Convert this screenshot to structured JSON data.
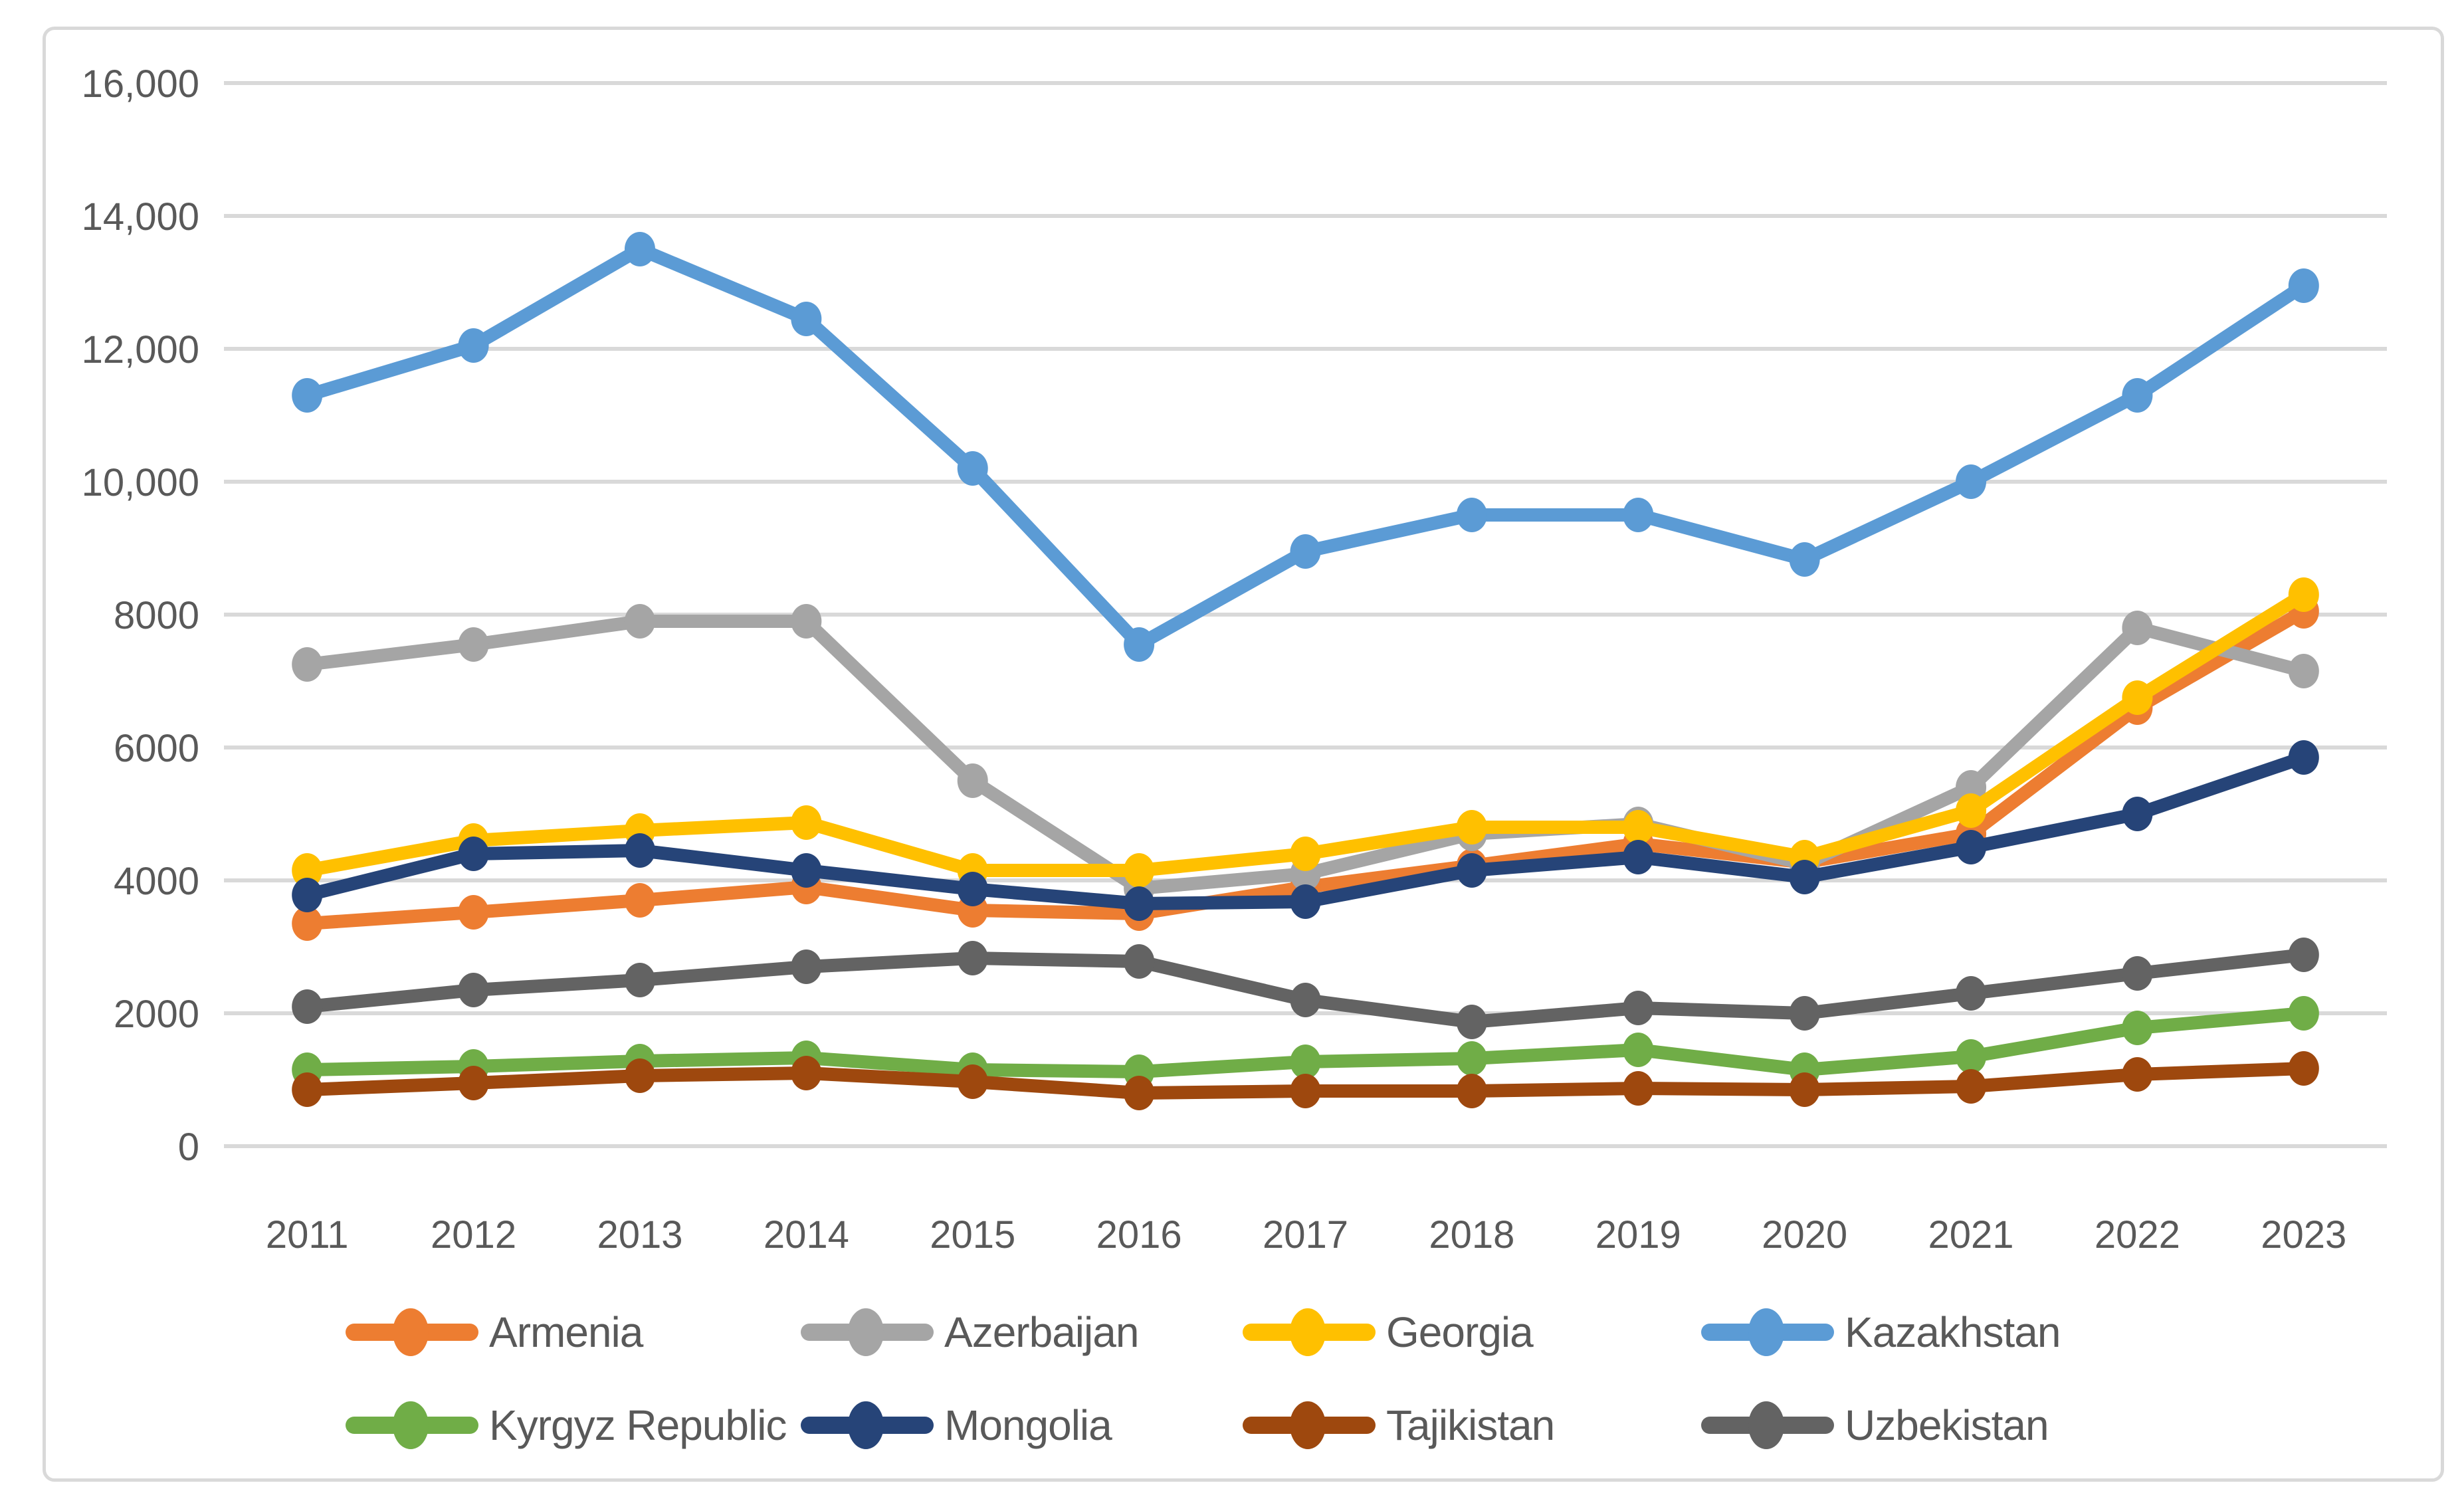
{
  "figure": {
    "background": "#FFFFFF",
    "frame_border_color": "#D9D9D9",
    "grid_color": "#D9D9D9",
    "axis_text_color": "#595959",
    "legend_text_color": "#595959"
  },
  "chart_data": {
    "type": "line",
    "title": "",
    "xlabel": "",
    "ylabel": "",
    "x": [
      "2011",
      "2012",
      "2013",
      "2014",
      "2015",
      "2016",
      "2017",
      "2018",
      "2019",
      "2020",
      "2021",
      "2022",
      "2023"
    ],
    "ylim": [
      0,
      16000
    ],
    "y_tick_interval": 2000,
    "y_tick_labels": [
      "0",
      "2000",
      "4000",
      "6000",
      "8000",
      "10,000",
      "12,000",
      "14,000",
      "16,000"
    ],
    "grid": "horizontal",
    "legend_position": "bottom",
    "marker": "circle",
    "series": [
      {
        "name": "Armenia",
        "color": "#ED7D31",
        "values": [
          3350,
          3520,
          3700,
          3900,
          3550,
          3500,
          3900,
          4220,
          4550,
          4270,
          4700,
          6600,
          8050
        ]
      },
      {
        "name": "Azerbaijan",
        "color": "#A5A5A5",
        "values": [
          7250,
          7550,
          7900,
          7900,
          5500,
          3880,
          4100,
          4700,
          4850,
          4250,
          5400,
          7800,
          7150
        ]
      },
      {
        "name": "Georgia",
        "color": "#FFC000",
        "values": [
          4150,
          4600,
          4750,
          4870,
          4150,
          4150,
          4400,
          4800,
          4800,
          4350,
          5050,
          6750,
          8300
        ]
      },
      {
        "name": "Kazakhstan",
        "color": "#5B9BD5",
        "values": [
          11300,
          12050,
          13500,
          12450,
          10200,
          7550,
          8950,
          9500,
          9500,
          8830,
          10000,
          11300,
          12950
        ]
      },
      {
        "name": "Kyrgyz Republic",
        "color": "#70AD47",
        "values": [
          1150,
          1200,
          1280,
          1330,
          1150,
          1120,
          1270,
          1320,
          1450,
          1150,
          1350,
          1780,
          2000
        ]
      },
      {
        "name": "Mongolia",
        "color": "#264478",
        "values": [
          3780,
          4400,
          4450,
          4150,
          3870,
          3650,
          3680,
          4150,
          4350,
          4050,
          4500,
          5000,
          5850
        ]
      },
      {
        "name": "Tajikistan",
        "color": "#9E480E",
        "values": [
          850,
          950,
          1060,
          1100,
          970,
          800,
          830,
          830,
          870,
          850,
          900,
          1080,
          1170
        ]
      },
      {
        "name": "Uzbekistan",
        "color": "#636363",
        "values": [
          2100,
          2350,
          2500,
          2700,
          2830,
          2780,
          2200,
          1870,
          2080,
          2000,
          2300,
          2600,
          2880
        ]
      }
    ],
    "legend_layout_rows": [
      [
        0,
        1,
        2,
        3
      ],
      [
        4,
        5,
        6,
        7
      ]
    ]
  }
}
